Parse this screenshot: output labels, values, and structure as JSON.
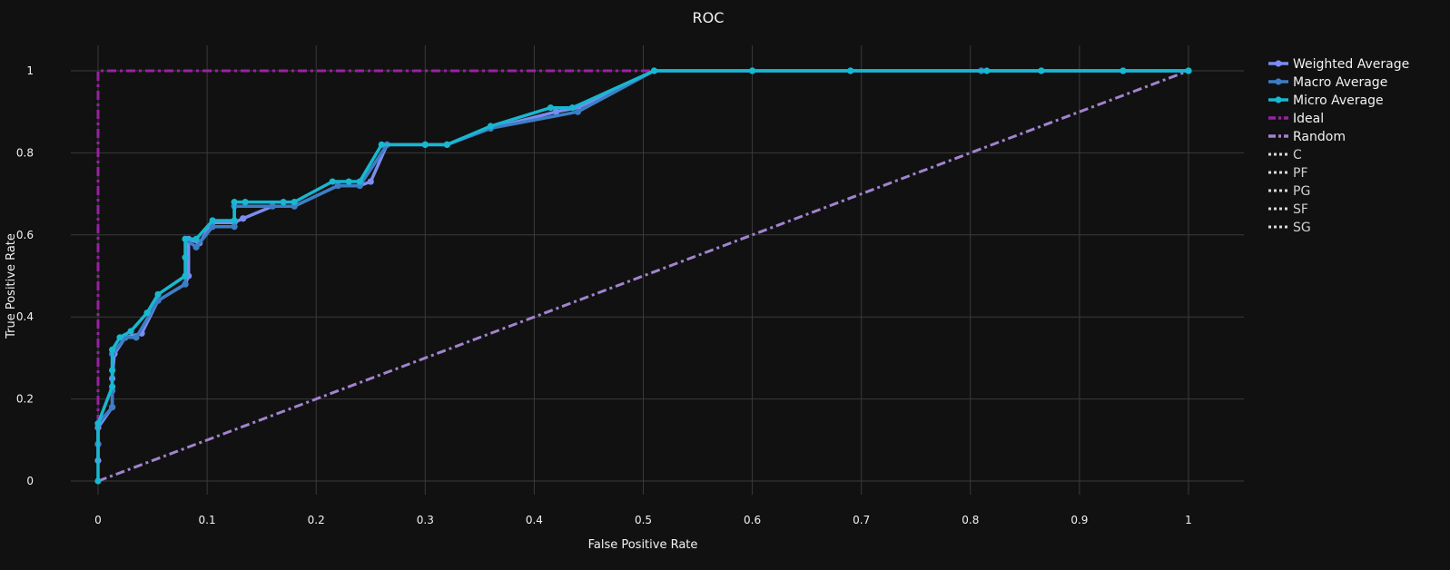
{
  "chart_data": {
    "type": "line",
    "title": "ROC",
    "xlabel": "False Positive Rate",
    "ylabel": "True Positive Rate",
    "xlim": [
      -0.025,
      1.05
    ],
    "ylim": [
      -0.02,
      1.07
    ],
    "x_ticks": [
      0,
      0.1,
      0.2,
      0.3,
      0.4,
      0.5,
      0.6,
      0.7,
      0.8,
      0.9,
      1
    ],
    "x_tick_labels": [
      "0",
      "0.1",
      "0.2",
      "0.3",
      "0.4",
      "0.5",
      "0.6",
      "0.7",
      "0.8",
      "0.9",
      "1"
    ],
    "y_ticks": [
      0,
      0.2,
      0.4,
      0.6,
      0.8,
      1
    ],
    "y_tick_labels": [
      "0",
      "0.2",
      "0.4",
      "0.6",
      "0.8",
      "1"
    ],
    "grid": true,
    "legend_position": "top-right",
    "series": [
      {
        "name": "Weighted Average",
        "color": "#7b8cf0",
        "style": "solid",
        "markers": true,
        "x": [
          0,
          0,
          0,
          0.013,
          0.013,
          0.015,
          0.025,
          0.04,
          0.055,
          0.08,
          0.083,
          0.083,
          0.093,
          0.105,
          0.125,
          0.133,
          0.16,
          0.18,
          0.22,
          0.24,
          0.25,
          0.265,
          0.3,
          0.32,
          0.36,
          0.42,
          0.44,
          0.51,
          0.6,
          0.69,
          0.81,
          0.865,
          0.94,
          1
        ],
        "y": [
          0.05,
          0.09,
          0.13,
          0.18,
          0.25,
          0.31,
          0.35,
          0.36,
          0.44,
          0.48,
          0.5,
          0.59,
          0.58,
          0.63,
          0.63,
          0.64,
          0.67,
          0.67,
          0.72,
          0.72,
          0.73,
          0.82,
          0.82,
          0.82,
          0.86,
          0.9,
          0.91,
          1,
          1,
          1,
          1,
          1,
          1,
          1
        ]
      },
      {
        "name": "Macro Average",
        "color": "#3c7ec6",
        "style": "solid",
        "markers": true,
        "x": [
          0,
          0,
          0.013,
          0.013,
          0.013,
          0.025,
          0.035,
          0.055,
          0.08,
          0.08,
          0.09,
          0.105,
          0.125,
          0.125,
          0.16,
          0.18,
          0.22,
          0.24,
          0.265,
          0.3,
          0.32,
          0.36,
          0.44,
          0.51,
          0.6,
          0.69,
          0.81,
          0.865,
          0.94,
          1
        ],
        "y": [
          0.09,
          0.14,
          0.18,
          0.22,
          0.31,
          0.35,
          0.35,
          0.44,
          0.48,
          0.59,
          0.57,
          0.62,
          0.62,
          0.67,
          0.67,
          0.67,
          0.72,
          0.72,
          0.82,
          0.82,
          0.82,
          0.86,
          0.9,
          1,
          1,
          1,
          1,
          1,
          1,
          1
        ]
      },
      {
        "name": "Micro Average",
        "color": "#17b8d0",
        "style": "solid",
        "markers": true,
        "x": [
          0,
          0,
          0.013,
          0.013,
          0.013,
          0.02,
          0.03,
          0.045,
          0.055,
          0.08,
          0.08,
          0.08,
          0.09,
          0.105,
          0.125,
          0.125,
          0.135,
          0.17,
          0.18,
          0.215,
          0.23,
          0.24,
          0.26,
          0.3,
          0.32,
          0.36,
          0.415,
          0.435,
          0.51,
          0.6,
          0.69,
          0.815,
          0.865,
          0.94,
          1
        ],
        "y": [
          0,
          0.14,
          0.23,
          0.27,
          0.32,
          0.35,
          0.365,
          0.41,
          0.455,
          0.5,
          0.545,
          0.59,
          0.59,
          0.635,
          0.635,
          0.68,
          0.68,
          0.68,
          0.68,
          0.73,
          0.73,
          0.73,
          0.82,
          0.82,
          0.82,
          0.865,
          0.91,
          0.91,
          1,
          1,
          1,
          1,
          1,
          1,
          1
        ]
      },
      {
        "name": "Ideal",
        "color": "#9b1fa4",
        "style": "dashdot",
        "markers": false,
        "x": [
          0,
          0,
          1
        ],
        "y": [
          0,
          1,
          1
        ]
      },
      {
        "name": "Random",
        "color": "#a183cf",
        "style": "dashdot",
        "markers": false,
        "x": [
          0,
          1
        ],
        "y": [
          0,
          1
        ]
      }
    ],
    "legend": [
      {
        "name": "Weighted Average",
        "color": "#7b8cf0",
        "style": "solid",
        "marker": true
      },
      {
        "name": "Macro Average",
        "color": "#3c7ec6",
        "style": "solid",
        "marker": true
      },
      {
        "name": "Micro Average",
        "color": "#17b8d0",
        "style": "solid",
        "marker": true
      },
      {
        "name": "Ideal",
        "color": "#9b1fa4",
        "style": "dashdot",
        "marker": false
      },
      {
        "name": "Random",
        "color": "#a183cf",
        "style": "dashdot",
        "marker": false
      },
      {
        "name": "C",
        "color": "#d9d9d9",
        "style": "dot",
        "marker": false
      },
      {
        "name": "PF",
        "color": "#d9d9d9",
        "style": "dot",
        "marker": false
      },
      {
        "name": "PG",
        "color": "#d9d9d9",
        "style": "dot",
        "marker": false
      },
      {
        "name": "SF",
        "color": "#d9d9d9",
        "style": "dot",
        "marker": false
      },
      {
        "name": "SG",
        "color": "#d9d9d9",
        "style": "dot",
        "marker": false
      }
    ]
  },
  "colors": {
    "background": "#111111",
    "grid": "#3a3a3a",
    "text": "#f2f2f2"
  }
}
